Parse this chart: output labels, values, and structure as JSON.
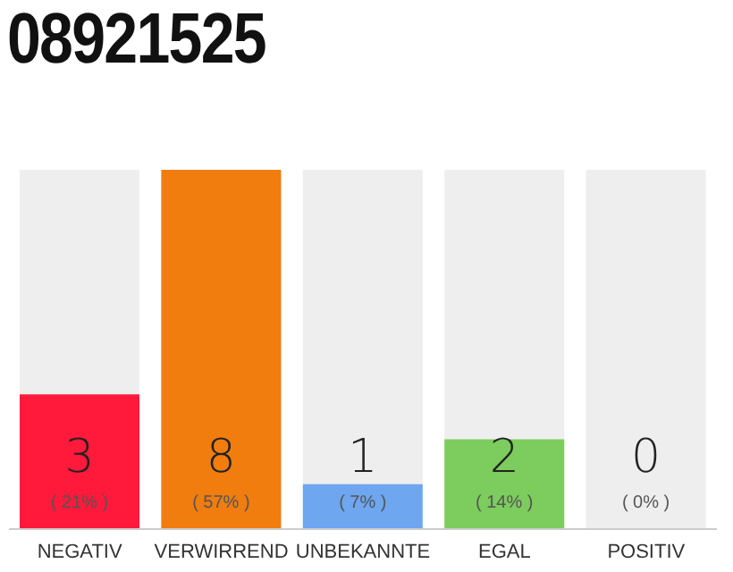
{
  "chart_data": {
    "type": "bar",
    "title": "08921525",
    "categories": [
      "NEGATIV",
      "VERWIRREND",
      "UNBEKANNTE",
      "EGAL",
      "POSITIV"
    ],
    "values": [
      3,
      8,
      1,
      2,
      0
    ],
    "colors": [
      "#ff1a3c",
      "#f07d0e",
      "#6ea6f0",
      "#7ccc5e",
      "#d0d0d0"
    ],
    "value_labels": [
      "3\n( 21% )",
      "8\n( 57% )",
      "1\n( 7% )",
      "2\n( 14% )",
      "0\n( 0% )"
    ],
    "ylim": [
      0,
      8
    ],
    "tick_labels": "x"
  }
}
